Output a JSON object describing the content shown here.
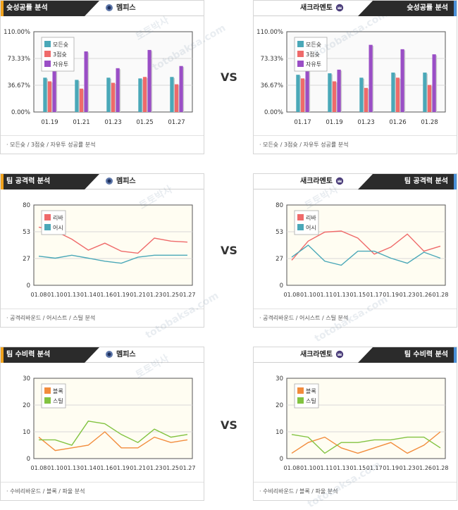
{
  "vs_label": "VS",
  "watermark": [
    "토토박사",
    "totobaksa.com"
  ],
  "colors": {
    "teal": "#4aa8b8",
    "red": "#ef6a6a",
    "purple": "#9a4ec6",
    "orange": "#f28c3c",
    "green": "#82c341"
  },
  "sections": [
    {
      "id": "shooting",
      "left": {
        "tab": "슛성공률 분석",
        "team": "멤피스",
        "team_icon": "bear-logo-icon",
        "footer": "· 모든슛 / 3점슛 / 자유투 성공률 분석"
      },
      "right": {
        "tab": "슛성공률 분석",
        "team": "새크라멘토",
        "team_icon": "king-crown-logo-icon",
        "footer": "· 모든슛 / 3점슛 / 자유투 성공률 분석"
      }
    },
    {
      "id": "offense",
      "left": {
        "tab": "팀 공격력 분석",
        "team": "멤피스",
        "team_icon": "bear-logo-icon",
        "footer": "· 공격리바운드 / 어시스트 / 스틸 분석"
      },
      "right": {
        "tab": "팀 공격력 분석",
        "team": "새크라멘토",
        "team_icon": "king-crown-logo-icon",
        "footer": "· 공격리바운드 / 어시스트 / 스틸 분석"
      }
    },
    {
      "id": "defense",
      "left": {
        "tab": "팀 수비력 분석",
        "team": "멤피스",
        "team_icon": "bear-logo-icon",
        "footer": "· 수비리바운드 / 블록 / 파울 분석"
      },
      "right": {
        "tab": "팀 수비력 분석",
        "team": "새크라멘토",
        "team_icon": "king-crown-logo-icon",
        "footer": "· 수비리바운드 / 블록 / 파울 분석"
      }
    }
  ],
  "chart_data": [
    {
      "id": "shooting-left",
      "type": "bar",
      "categories": [
        "01.19",
        "01.21",
        "01.23",
        "01.25",
        "01.27"
      ],
      "ylim": [
        0,
        110
      ],
      "yticks": [
        "0.00%",
        "36.67%",
        "73.33%",
        "110.00%"
      ],
      "grid": true,
      "legend": "top-left",
      "series": [
        {
          "name": "모든슛",
          "color": "#4aa8b8",
          "values": [
            47,
            44,
            47,
            46,
            48
          ]
        },
        {
          "name": "3점슛",
          "color": "#ef6a6a",
          "values": [
            42,
            32,
            40,
            48,
            38
          ]
        },
        {
          "name": "자유투",
          "color": "#9a4ec6",
          "values": [
            75,
            83,
            60,
            85,
            63
          ]
        }
      ]
    },
    {
      "id": "shooting-right",
      "type": "bar",
      "categories": [
        "01.17",
        "01.19",
        "01.23",
        "01.26",
        "01.28"
      ],
      "ylim": [
        0,
        110
      ],
      "yticks": [
        "0.00%",
        "36.67%",
        "73.33%",
        "110.00%"
      ],
      "grid": true,
      "legend": "top-left",
      "series": [
        {
          "name": "모든슛",
          "color": "#4aa8b8",
          "values": [
            51,
            53,
            47,
            54,
            54
          ]
        },
        {
          "name": "3점슛",
          "color": "#ef6a6a",
          "values": [
            46,
            42,
            33,
            47,
            37
          ]
        },
        {
          "name": "자유투",
          "color": "#9a4ec6",
          "values": [
            60,
            58,
            92,
            86,
            79
          ]
        }
      ]
    },
    {
      "id": "offense-left",
      "type": "line",
      "categories": [
        "01.08",
        "01.10",
        "01.13",
        "01.14",
        "01.16",
        "01.19",
        "01.21",
        "01.23",
        "01.25",
        "01.27"
      ],
      "ylim": [
        0,
        80
      ],
      "yticks": [
        "0",
        "27",
        "53",
        "80"
      ],
      "grid": true,
      "legend": "top-left",
      "series": [
        {
          "name": "리바",
          "color": "#ef6a6a",
          "values": [
            58,
            54,
            46,
            35,
            42,
            34,
            32,
            47,
            44,
            43
          ]
        },
        {
          "name": "어시",
          "color": "#4aa8b8",
          "values": [
            29,
            27,
            30,
            27,
            24,
            22,
            28,
            30,
            30,
            30
          ]
        }
      ]
    },
    {
      "id": "offense-right",
      "type": "line",
      "categories": [
        "01.08",
        "01.10",
        "01.11",
        "01.13",
        "01.15",
        "01.17",
        "01.19",
        "01.23",
        "01.26",
        "01.28"
      ],
      "ylim": [
        0,
        80
      ],
      "yticks": [
        "0",
        "27",
        "53",
        "80"
      ],
      "grid": true,
      "legend": "top-left",
      "series": [
        {
          "name": "리바",
          "color": "#ef6a6a",
          "values": [
            25,
            44,
            53,
            54,
            47,
            31,
            38,
            51,
            34,
            39
          ]
        },
        {
          "name": "어시",
          "color": "#4aa8b8",
          "values": [
            28,
            40,
            24,
            20,
            34,
            34,
            27,
            22,
            33,
            27
          ]
        }
      ]
    },
    {
      "id": "defense-left",
      "type": "line",
      "categories": [
        "01.08",
        "01.10",
        "01.13",
        "01.14",
        "01.16",
        "01.19",
        "01.21",
        "01.23",
        "01.25",
        "01.27"
      ],
      "ylim": [
        0,
        30
      ],
      "yticks": [
        "0",
        "10",
        "20",
        "30"
      ],
      "grid": true,
      "legend": "top-left",
      "series": [
        {
          "name": "블록",
          "color": "#f28c3c",
          "values": [
            8,
            3,
            4,
            5,
            10,
            4,
            4,
            8,
            6,
            7
          ]
        },
        {
          "name": "스틸",
          "color": "#82c341",
          "values": [
            7,
            7,
            5,
            14,
            13,
            9,
            6,
            11,
            8,
            9
          ]
        }
      ]
    },
    {
      "id": "defense-right",
      "type": "line",
      "categories": [
        "01.08",
        "01.10",
        "01.11",
        "01.13",
        "01.15",
        "01.17",
        "01.19",
        "01.23",
        "01.26",
        "01.28"
      ],
      "ylim": [
        0,
        30
      ],
      "yticks": [
        "0",
        "10",
        "20",
        "30"
      ],
      "grid": true,
      "legend": "top-left",
      "series": [
        {
          "name": "블록",
          "color": "#f28c3c",
          "values": [
            2,
            6,
            8,
            4,
            2,
            4,
            6,
            2,
            5,
            10
          ]
        },
        {
          "name": "스틸",
          "color": "#82c341",
          "values": [
            9,
            8,
            2,
            6,
            6,
            7,
            7,
            8,
            8,
            4
          ]
        }
      ]
    }
  ]
}
